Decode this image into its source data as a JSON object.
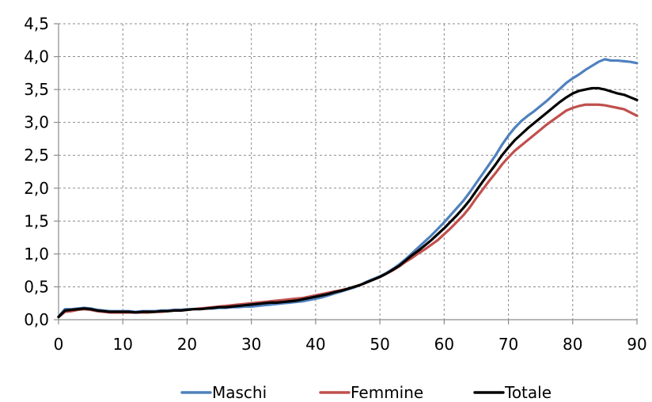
{
  "chart_data": {
    "type": "line",
    "title": "",
    "xlabel": "",
    "ylabel": "",
    "xlim": [
      0,
      90
    ],
    "ylim": [
      0,
      4.5
    ],
    "x_ticks": [
      "0",
      "10",
      "20",
      "30",
      "40",
      "50",
      "60",
      "70",
      "80",
      "90"
    ],
    "y_ticks": [
      "0,0",
      "0,5",
      "1,0",
      "1,5",
      "2,0",
      "2,5",
      "3,0",
      "3,5",
      "4,0",
      "4,5"
    ],
    "grid": true,
    "legend_position": "bottom",
    "x": [
      0,
      1,
      2,
      3,
      4,
      5,
      6,
      7,
      8,
      9,
      10,
      11,
      12,
      13,
      14,
      15,
      16,
      17,
      18,
      19,
      20,
      21,
      22,
      23,
      24,
      25,
      26,
      27,
      28,
      29,
      30,
      31,
      32,
      33,
      34,
      35,
      36,
      37,
      38,
      39,
      40,
      41,
      42,
      43,
      44,
      45,
      46,
      47,
      48,
      49,
      50,
      51,
      52,
      53,
      54,
      55,
      56,
      57,
      58,
      59,
      60,
      61,
      62,
      63,
      64,
      65,
      66,
      67,
      68,
      69,
      70,
      71,
      72,
      73,
      74,
      75,
      76,
      77,
      78,
      79,
      80,
      81,
      82,
      83,
      84,
      85,
      86,
      87,
      88,
      89,
      90
    ],
    "series": [
      {
        "name": "Maschi",
        "color": "#4f81bd",
        "values": [
          0.05,
          0.16,
          0.16,
          0.17,
          0.18,
          0.17,
          0.15,
          0.14,
          0.13,
          0.13,
          0.13,
          0.13,
          0.12,
          0.13,
          0.13,
          0.13,
          0.14,
          0.14,
          0.15,
          0.15,
          0.16,
          0.16,
          0.17,
          0.17,
          0.17,
          0.18,
          0.18,
          0.19,
          0.19,
          0.2,
          0.2,
          0.21,
          0.22,
          0.23,
          0.24,
          0.25,
          0.26,
          0.27,
          0.28,
          0.3,
          0.32,
          0.34,
          0.37,
          0.4,
          0.43,
          0.46,
          0.49,
          0.53,
          0.58,
          0.62,
          0.66,
          0.71,
          0.77,
          0.84,
          0.92,
          1.01,
          1.1,
          1.19,
          1.28,
          1.38,
          1.48,
          1.59,
          1.7,
          1.81,
          1.94,
          2.08,
          2.22,
          2.36,
          2.5,
          2.66,
          2.8,
          2.92,
          3.02,
          3.1,
          3.17,
          3.25,
          3.33,
          3.42,
          3.51,
          3.6,
          3.67,
          3.73,
          3.8,
          3.86,
          3.92,
          3.96,
          3.94,
          3.94,
          3.93,
          3.92,
          3.9
        ]
      },
      {
        "name": "Femmine",
        "color": "#c0504d",
        "values": [
          0.04,
          0.12,
          0.13,
          0.15,
          0.16,
          0.15,
          0.13,
          0.12,
          0.11,
          0.11,
          0.11,
          0.11,
          0.11,
          0.11,
          0.11,
          0.12,
          0.12,
          0.13,
          0.14,
          0.14,
          0.15,
          0.16,
          0.17,
          0.18,
          0.19,
          0.2,
          0.21,
          0.22,
          0.23,
          0.24,
          0.25,
          0.26,
          0.27,
          0.28,
          0.29,
          0.3,
          0.31,
          0.32,
          0.33,
          0.35,
          0.37,
          0.39,
          0.41,
          0.43,
          0.45,
          0.47,
          0.5,
          0.53,
          0.57,
          0.61,
          0.65,
          0.7,
          0.75,
          0.81,
          0.88,
          0.94,
          1.01,
          1.07,
          1.14,
          1.21,
          1.3,
          1.39,
          1.49,
          1.59,
          1.71,
          1.85,
          1.98,
          2.11,
          2.23,
          2.36,
          2.47,
          2.57,
          2.65,
          2.73,
          2.81,
          2.89,
          2.97,
          3.04,
          3.11,
          3.18,
          3.22,
          3.25,
          3.27,
          3.27,
          3.27,
          3.26,
          3.24,
          3.22,
          3.2,
          3.15,
          3.1
        ]
      },
      {
        "name": "Totale",
        "color": "#000000",
        "values": [
          0.04,
          0.14,
          0.15,
          0.16,
          0.17,
          0.16,
          0.14,
          0.13,
          0.12,
          0.12,
          0.12,
          0.12,
          0.11,
          0.12,
          0.12,
          0.12,
          0.13,
          0.13,
          0.14,
          0.14,
          0.15,
          0.16,
          0.16,
          0.17,
          0.18,
          0.19,
          0.19,
          0.2,
          0.21,
          0.22,
          0.23,
          0.24,
          0.25,
          0.26,
          0.26,
          0.27,
          0.28,
          0.29,
          0.31,
          0.33,
          0.35,
          0.37,
          0.39,
          0.42,
          0.44,
          0.47,
          0.5,
          0.53,
          0.57,
          0.61,
          0.65,
          0.7,
          0.76,
          0.82,
          0.9,
          0.98,
          1.05,
          1.13,
          1.21,
          1.3,
          1.39,
          1.49,
          1.59,
          1.7,
          1.82,
          1.96,
          2.1,
          2.23,
          2.36,
          2.5,
          2.62,
          2.73,
          2.82,
          2.91,
          2.99,
          3.07,
          3.15,
          3.23,
          3.31,
          3.38,
          3.44,
          3.48,
          3.5,
          3.52,
          3.52,
          3.5,
          3.47,
          3.44,
          3.42,
          3.38,
          3.34
        ]
      }
    ]
  }
}
